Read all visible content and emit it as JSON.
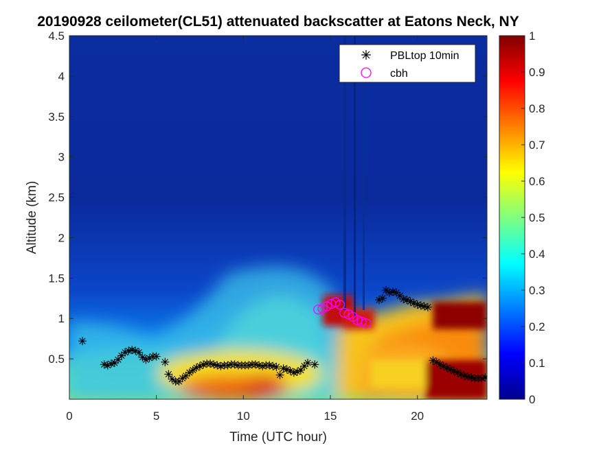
{
  "chart_data": {
    "type": "heatmap",
    "title": "20190928 ceilometer(CL51) attenuated backscatter at Eatons Neck, NY",
    "xlabel": "Time (UTC hour)",
    "ylabel": "Altitude (km)",
    "xlim": [
      0,
      24
    ],
    "ylim": [
      0,
      4.5
    ],
    "xticks": [
      "0",
      "5",
      "10",
      "15",
      "20"
    ],
    "yticks": [
      "0.5",
      "1",
      "1.5",
      "2",
      "2.5",
      "3",
      "3.5",
      "4",
      "4.5"
    ],
    "colorbar": {
      "colormap": "jet",
      "range": [
        0,
        1
      ],
      "ticks": [
        "0",
        "0.1",
        "0.2",
        "0.3",
        "0.4",
        "0.5",
        "0.6",
        "0.7",
        "0.8",
        "0.9",
        "1"
      ]
    },
    "legend": {
      "placement": "top-right",
      "entries": [
        "PBLtop 10min",
        "cbh"
      ]
    },
    "series": [
      {
        "name": "PBLtop 10min",
        "marker": "asterisk",
        "color": "#000000",
        "points": [
          [
            0.75,
            0.72
          ],
          [
            2.0,
            0.43
          ],
          [
            2.2,
            0.42
          ],
          [
            2.4,
            0.44
          ],
          [
            2.6,
            0.45
          ],
          [
            2.8,
            0.49
          ],
          [
            3.0,
            0.54
          ],
          [
            3.2,
            0.58
          ],
          [
            3.4,
            0.6
          ],
          [
            3.6,
            0.61
          ],
          [
            3.8,
            0.6
          ],
          [
            4.0,
            0.58
          ],
          [
            4.2,
            0.52
          ],
          [
            4.4,
            0.49
          ],
          [
            4.6,
            0.51
          ],
          [
            4.8,
            0.53
          ],
          [
            5.0,
            0.53
          ],
          [
            5.5,
            0.46
          ],
          [
            5.7,
            0.31
          ],
          [
            5.9,
            0.25
          ],
          [
            6.1,
            0.22
          ],
          [
            6.3,
            0.22
          ],
          [
            6.5,
            0.26
          ],
          [
            6.7,
            0.29
          ],
          [
            6.9,
            0.33
          ],
          [
            7.1,
            0.36
          ],
          [
            7.3,
            0.39
          ],
          [
            7.5,
            0.41
          ],
          [
            7.7,
            0.43
          ],
          [
            7.9,
            0.44
          ],
          [
            8.1,
            0.44
          ],
          [
            8.3,
            0.43
          ],
          [
            8.5,
            0.42
          ],
          [
            8.7,
            0.41
          ],
          [
            8.9,
            0.42
          ],
          [
            9.1,
            0.42
          ],
          [
            9.3,
            0.43
          ],
          [
            9.5,
            0.43
          ],
          [
            9.7,
            0.42
          ],
          [
            9.9,
            0.42
          ],
          [
            10.1,
            0.42
          ],
          [
            10.3,
            0.42
          ],
          [
            10.5,
            0.43
          ],
          [
            10.7,
            0.43
          ],
          [
            10.9,
            0.42
          ],
          [
            11.1,
            0.41
          ],
          [
            11.3,
            0.42
          ],
          [
            11.5,
            0.42
          ],
          [
            11.7,
            0.41
          ],
          [
            11.9,
            0.4
          ],
          [
            12.1,
            0.3
          ],
          [
            12.3,
            0.38
          ],
          [
            12.5,
            0.37
          ],
          [
            12.7,
            0.35
          ],
          [
            12.9,
            0.33
          ],
          [
            13.1,
            0.34
          ],
          [
            13.3,
            0.36
          ],
          [
            13.5,
            0.41
          ],
          [
            13.7,
            0.45
          ],
          [
            14.1,
            0.43
          ],
          [
            17.8,
            1.23
          ],
          [
            18.0,
            1.25
          ],
          [
            18.2,
            1.35
          ],
          [
            18.4,
            1.32
          ],
          [
            18.6,
            1.33
          ],
          [
            18.8,
            1.32
          ],
          [
            19.0,
            1.28
          ],
          [
            19.2,
            1.24
          ],
          [
            19.4,
            1.23
          ],
          [
            19.6,
            1.21
          ],
          [
            19.8,
            1.19
          ],
          [
            20.0,
            1.17
          ],
          [
            20.2,
            1.16
          ],
          [
            20.4,
            1.15
          ],
          [
            20.6,
            1.14
          ],
          [
            20.9,
            0.48
          ],
          [
            21.1,
            0.46
          ],
          [
            21.3,
            0.43
          ],
          [
            21.5,
            0.41
          ],
          [
            21.7,
            0.39
          ],
          [
            21.9,
            0.37
          ],
          [
            22.1,
            0.35
          ],
          [
            22.3,
            0.33
          ],
          [
            22.5,
            0.31
          ],
          [
            22.7,
            0.29
          ],
          [
            22.9,
            0.28
          ],
          [
            23.1,
            0.27
          ],
          [
            23.3,
            0.26
          ],
          [
            23.5,
            0.26
          ],
          [
            23.7,
            0.26
          ],
          [
            23.9,
            0.27
          ]
        ]
      },
      {
        "name": "cbh",
        "marker": "circle",
        "color": "#ff00ff",
        "points": [
          [
            14.3,
            1.11
          ],
          [
            14.55,
            1.12
          ],
          [
            14.8,
            1.15
          ],
          [
            15.05,
            1.18
          ],
          [
            15.3,
            1.2
          ],
          [
            15.55,
            1.17
          ],
          [
            15.8,
            1.07
          ],
          [
            16.05,
            1.05
          ],
          [
            16.3,
            1.02
          ],
          [
            16.55,
            0.98
          ],
          [
            16.8,
            0.96
          ],
          [
            17.05,
            0.94
          ]
        ]
      }
    ]
  }
}
